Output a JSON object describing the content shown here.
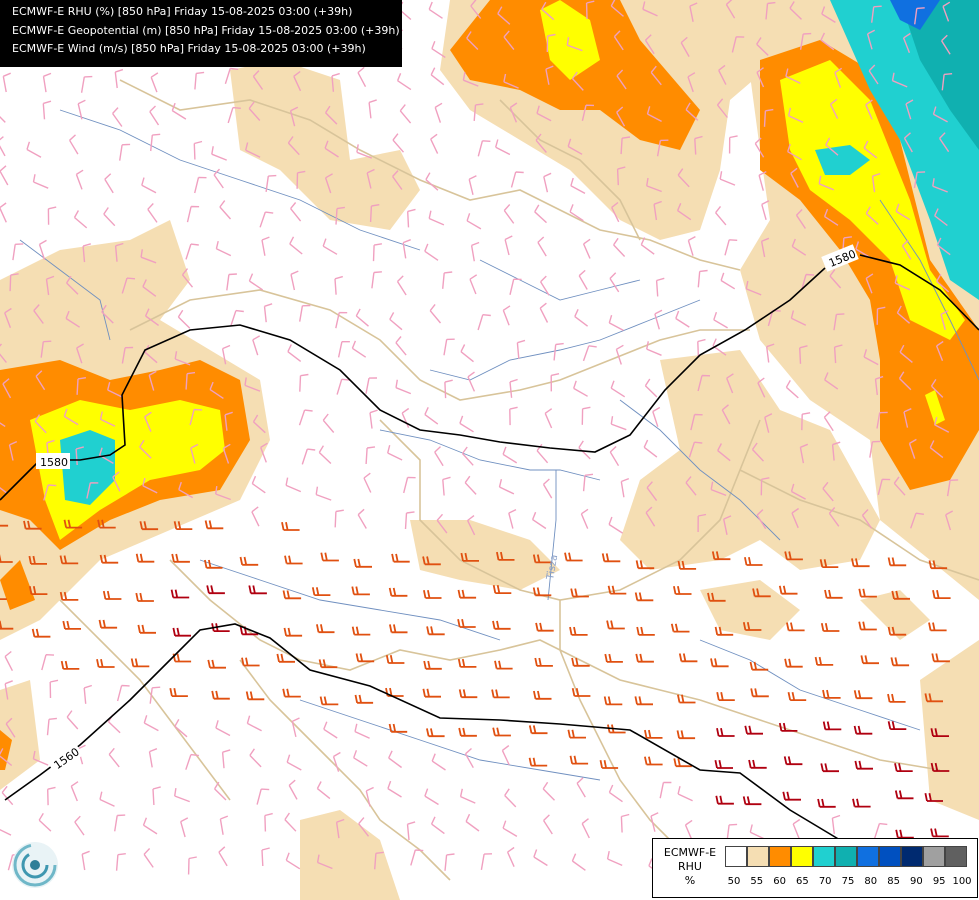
{
  "titles": {
    "line1": "ECMWF-E RHU (%) [850 hPa] Friday 15-08-2025 03:00 (+39h)",
    "line2": "ECMWF-E Geopotential (m) [850 hPa] Friday 15-08-2025 03:00 (+39h)",
    "line3": "ECMWF-E Wind (m/s) [850 hPa] Friday 15-08-2025 03:00 (+39h)"
  },
  "contours": [
    {
      "label": "1580"
    },
    {
      "label": "1580"
    },
    {
      "label": "1560"
    }
  ],
  "river_label": "Tisza",
  "legend": {
    "title_line1": "ECMWF-E",
    "title_line2": "RHU",
    "unit": "%",
    "colors": [
      "#ffffff",
      "#f5deb3",
      "#ff8c00",
      "#ffff00",
      "#20d0d0",
      "#10b0b0",
      "#1070e0",
      "#0050c0",
      "#002a70",
      "#a0a0a0",
      "#606060"
    ],
    "labels": [
      "50",
      "55",
      "60",
      "65",
      "70",
      "75",
      "80",
      "85",
      "90",
      "95",
      "100"
    ]
  },
  "palette": {
    "beige": "#f5deb3",
    "orange": "#ff8c00",
    "yellow": "#ffff00",
    "cyan": "#20d0d0",
    "teal": "#10b0b0",
    "blue": "#1070e0",
    "border": "#d8c49a",
    "river": "#7090c0",
    "wind_light": "#f0a0c0",
    "wind_orange": "#e05010",
    "wind_red": "#b00010"
  }
}
